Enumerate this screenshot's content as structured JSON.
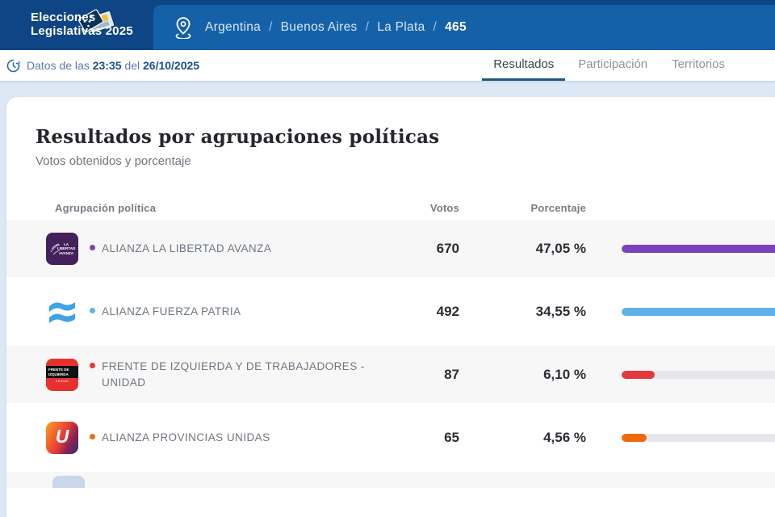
{
  "header": {
    "logo_line1": "Elecciones",
    "logo_line2": "Legislativas 2025",
    "breadcrumb": [
      "Argentina",
      "Buenos Aires",
      "La Plata",
      "465"
    ],
    "breadcrumb_separator": "/"
  },
  "statusbar": {
    "prefix": "Datos de las",
    "time": "23:35",
    "connector": "del",
    "date": "26/10/2025"
  },
  "tabs": [
    {
      "label": "Resultados",
      "active": true
    },
    {
      "label": "Participación",
      "active": false
    },
    {
      "label": "Territorios",
      "active": false
    }
  ],
  "main": {
    "title": "Resultados por agrupaciones políticas",
    "subtitle": "Votos obtenidos y porcentaje"
  },
  "table": {
    "columns": {
      "party": "Agrupación política",
      "votes": "Votos",
      "percent": "Porcentaje"
    },
    "rows": [
      {
        "name": "ALIANZA LA LIBERTAD AVANZA",
        "votes": "670",
        "percent": "47,05 %",
        "percent_value": 47.05,
        "color": "#7b42ba",
        "logo": "la-libertad-avanza-logo",
        "logo_text": "LA LIBERTAD AVANZA"
      },
      {
        "name": "ALIANZA FUERZA PATRIA",
        "votes": "492",
        "percent": "34,55 %",
        "percent_value": 34.55,
        "color": "#5fb2e5",
        "logo": "fuerza-patria-logo",
        "logo_text": ""
      },
      {
        "name": "FRENTE DE IZQUIERDA Y DE TRABAJADORES - UNIDAD",
        "votes": "87",
        "percent": "6,10 %",
        "percent_value": 6.1,
        "color": "#e3383c",
        "logo": "frente-izquierda-logo",
        "logo_text": "FRENTE DE IZQUIERDA",
        "logo_subtext": "UNIDAD"
      },
      {
        "name": "ALIANZA PROVINCIAS UNIDAS",
        "votes": "65",
        "percent": "4,56 %",
        "percent_value": 4.56,
        "color": "#f0690a",
        "logo": "provincias-unidas-logo",
        "logo_text": "U"
      }
    ],
    "partial_row_logo_color": "#c9d6ec"
  },
  "theme": {
    "header_dark": "#0e4584",
    "header_light": "#1561a8",
    "page_bg": "#dce8f6",
    "tab_underline": "#1d5a7a"
  }
}
